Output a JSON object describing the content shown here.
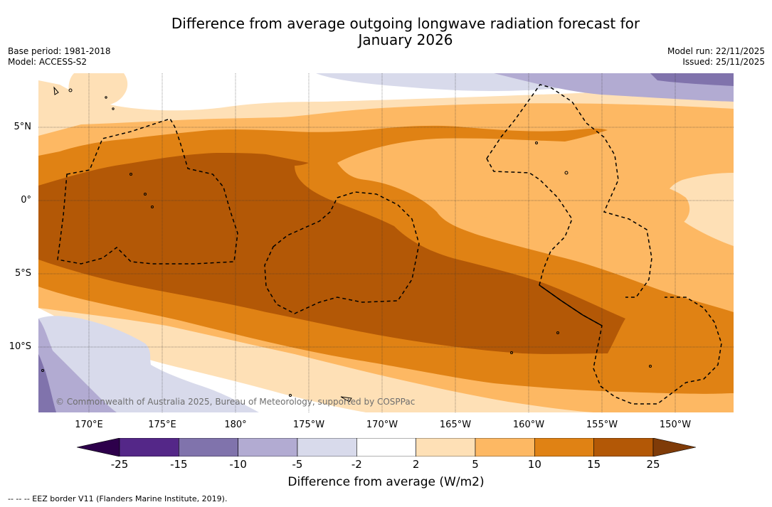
{
  "title": {
    "line1": "Difference from average outgoing longwave radiation forecast for",
    "line2": "January 2026"
  },
  "meta": {
    "base_period": "Base period: 1981-2018",
    "model": "Model: ACCESS-S2",
    "model_run": "Model run: 22/11/2025",
    "issued": "Issued: 25/11/2025"
  },
  "map": {
    "lat_labels": [
      "5°N",
      "0°",
      "5°S",
      "10°S"
    ],
    "lon_labels": [
      "170°E",
      "175°E",
      "180°",
      "175°W",
      "170°W",
      "165°W",
      "160°W",
      "155°W",
      "150°W"
    ],
    "copyright": "© Commonwealth of Australia 2025, Bureau of Meteorology, supported by COSPPac"
  },
  "colorbar": {
    "ticks": [
      "-25",
      "-15",
      "-10",
      "-5",
      "-2",
      "2",
      "5",
      "10",
      "15",
      "25"
    ],
    "colors": {
      "below_min": "#2d004b",
      "bins": [
        "#542788",
        "#8073ac",
        "#b2abd2",
        "#d8daeb",
        "#ffffff",
        "#fee0b6",
        "#fdb863",
        "#e08214",
        "#b35806"
      ],
      "above_max": "#7f3b08"
    },
    "label": "Difference from average (W/m2)"
  },
  "footnote": "--  --  -- EEZ border V11 (Flanders Marine Institute, 2019)."
}
